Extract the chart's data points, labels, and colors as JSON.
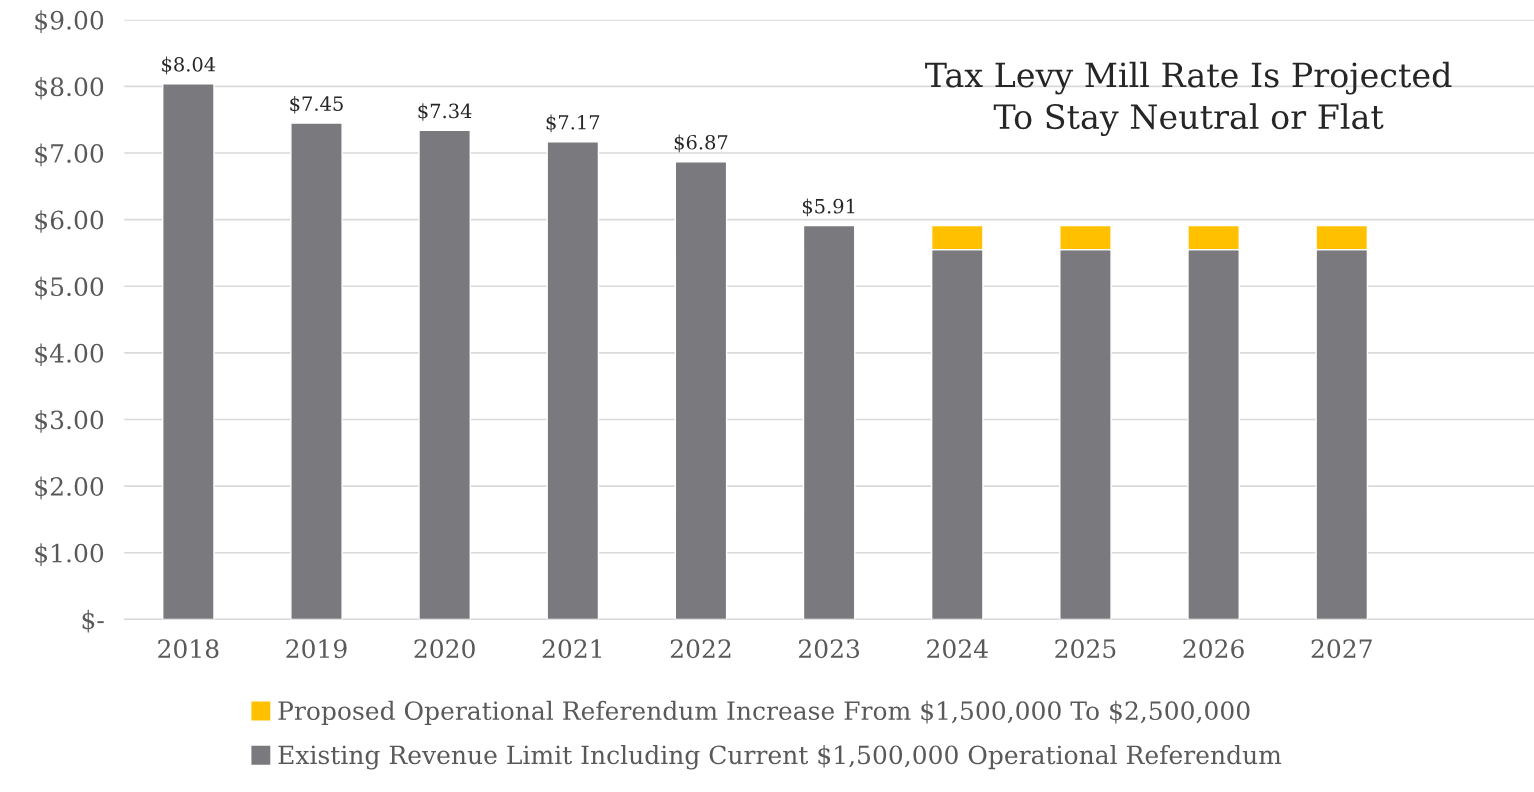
{
  "chart_data": {
    "type": "bar",
    "title": "Tax Levy Mill Rate Is Projected\nTo Stay Neutral or Flat",
    "categories": [
      "2018",
      "2019",
      "2020",
      "2021",
      "2022",
      "2023",
      "2024",
      "2025",
      "2026",
      "2027"
    ],
    "stacked": true,
    "series": [
      {
        "name": "Existing Revenue Limit Including Current $1,500,000 Operational Referendum",
        "color": "#7a7a7e",
        "values": [
          8.04,
          7.45,
          7.34,
          7.17,
          6.87,
          5.91,
          5.55,
          5.55,
          5.55,
          5.55
        ],
        "value_labels": [
          "$8.04",
          "$7.45",
          "$7.34",
          "$7.17",
          "$6.87",
          "$5.91",
          null,
          null,
          null,
          null
        ]
      },
      {
        "name": "Proposed Operational Referendum Increase From $1,500,000 To $2,500,000",
        "color": "#ffc000",
        "values": [
          null,
          null,
          null,
          null,
          null,
          null,
          0.36,
          0.36,
          0.36,
          0.36
        ]
      }
    ],
    "ylim": [
      0,
      9
    ],
    "yticks": [
      {
        "value": 0,
        "label": "$-"
      },
      {
        "value": 1,
        "label": "$1.00"
      },
      {
        "value": 2,
        "label": "$2.00"
      },
      {
        "value": 3,
        "label": "$3.00"
      },
      {
        "value": 4,
        "label": "$4.00"
      },
      {
        "value": 5,
        "label": "$5.00"
      },
      {
        "value": 6,
        "label": "$6.00"
      },
      {
        "value": 7,
        "label": "$7.00"
      },
      {
        "value": 8,
        "label": "$8.00"
      },
      {
        "value": 9,
        "label": "$9.00"
      }
    ],
    "grid": "y",
    "legend": "bottom"
  }
}
